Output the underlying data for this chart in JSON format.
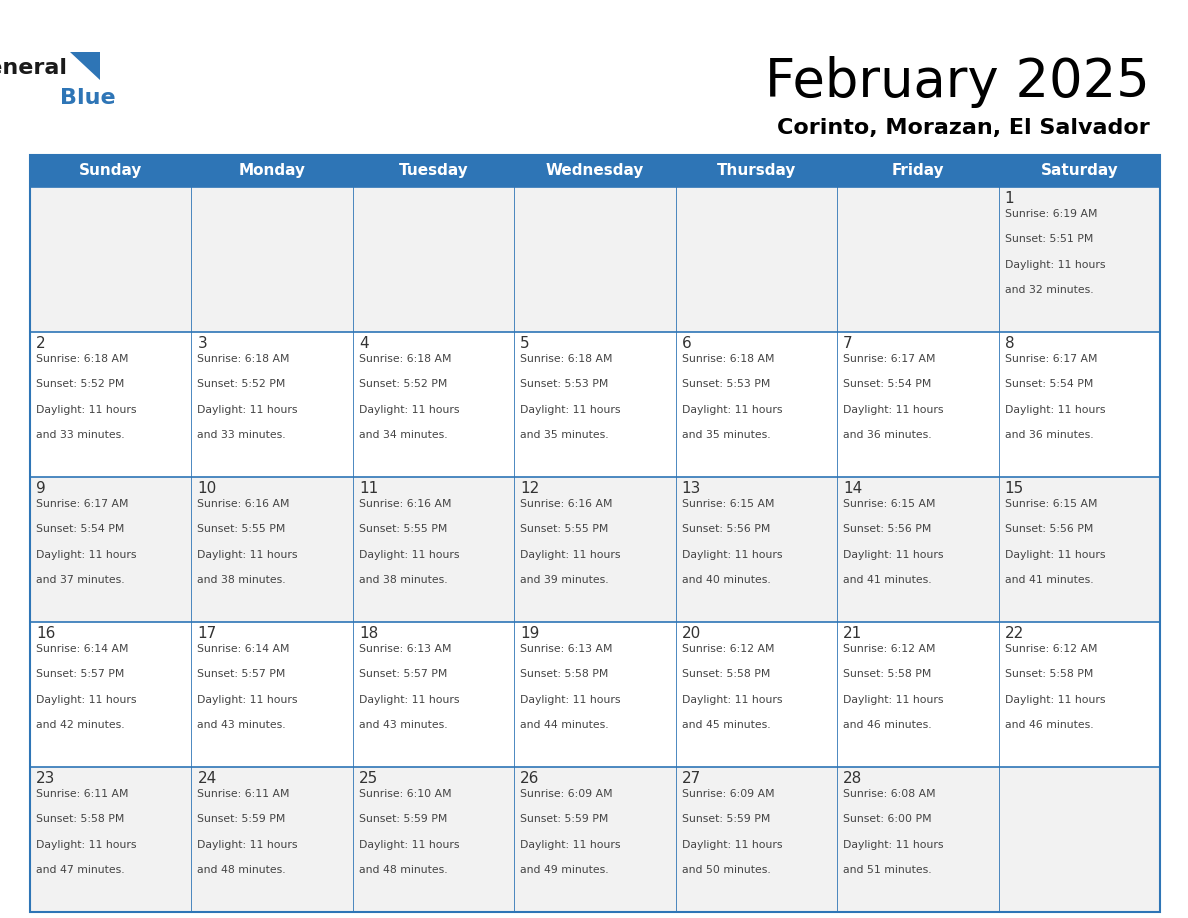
{
  "title": "February 2025",
  "subtitle": "Corinto, Morazan, El Salvador",
  "days_of_week": [
    "Sunday",
    "Monday",
    "Tuesday",
    "Wednesday",
    "Thursday",
    "Friday",
    "Saturday"
  ],
  "header_bg_color": "#2e75b6",
  "header_text_color": "#ffffff",
  "row_bg_even": "#f2f2f2",
  "row_bg_odd": "#ffffff",
  "grid_line_color": "#2e75b6",
  "day_number_color": "#333333",
  "cell_text_color": "#444444",
  "title_color": "#000000",
  "subtitle_color": "#000000",
  "logo_general_color": "#1a1a1a",
  "logo_blue_color": "#2e75b6",
  "logo_triangle_color": "#2e75b6",
  "calendar_data": [
    {
      "day": 1,
      "week": 0,
      "weekday": 6,
      "sunrise": "6:19 AM",
      "sunset": "5:51 PM",
      "daylight_hours": 11,
      "daylight_minutes": 32
    },
    {
      "day": 2,
      "week": 1,
      "weekday": 0,
      "sunrise": "6:18 AM",
      "sunset": "5:52 PM",
      "daylight_hours": 11,
      "daylight_minutes": 33
    },
    {
      "day": 3,
      "week": 1,
      "weekday": 1,
      "sunrise": "6:18 AM",
      "sunset": "5:52 PM",
      "daylight_hours": 11,
      "daylight_minutes": 33
    },
    {
      "day": 4,
      "week": 1,
      "weekday": 2,
      "sunrise": "6:18 AM",
      "sunset": "5:52 PM",
      "daylight_hours": 11,
      "daylight_minutes": 34
    },
    {
      "day": 5,
      "week": 1,
      "weekday": 3,
      "sunrise": "6:18 AM",
      "sunset": "5:53 PM",
      "daylight_hours": 11,
      "daylight_minutes": 35
    },
    {
      "day": 6,
      "week": 1,
      "weekday": 4,
      "sunrise": "6:18 AM",
      "sunset": "5:53 PM",
      "daylight_hours": 11,
      "daylight_minutes": 35
    },
    {
      "day": 7,
      "week": 1,
      "weekday": 5,
      "sunrise": "6:17 AM",
      "sunset": "5:54 PM",
      "daylight_hours": 11,
      "daylight_minutes": 36
    },
    {
      "day": 8,
      "week": 1,
      "weekday": 6,
      "sunrise": "6:17 AM",
      "sunset": "5:54 PM",
      "daylight_hours": 11,
      "daylight_minutes": 36
    },
    {
      "day": 9,
      "week": 2,
      "weekday": 0,
      "sunrise": "6:17 AM",
      "sunset": "5:54 PM",
      "daylight_hours": 11,
      "daylight_minutes": 37
    },
    {
      "day": 10,
      "week": 2,
      "weekday": 1,
      "sunrise": "6:16 AM",
      "sunset": "5:55 PM",
      "daylight_hours": 11,
      "daylight_minutes": 38
    },
    {
      "day": 11,
      "week": 2,
      "weekday": 2,
      "sunrise": "6:16 AM",
      "sunset": "5:55 PM",
      "daylight_hours": 11,
      "daylight_minutes": 38
    },
    {
      "day": 12,
      "week": 2,
      "weekday": 3,
      "sunrise": "6:16 AM",
      "sunset": "5:55 PM",
      "daylight_hours": 11,
      "daylight_minutes": 39
    },
    {
      "day": 13,
      "week": 2,
      "weekday": 4,
      "sunrise": "6:15 AM",
      "sunset": "5:56 PM",
      "daylight_hours": 11,
      "daylight_minutes": 40
    },
    {
      "day": 14,
      "week": 2,
      "weekday": 5,
      "sunrise": "6:15 AM",
      "sunset": "5:56 PM",
      "daylight_hours": 11,
      "daylight_minutes": 41
    },
    {
      "day": 15,
      "week": 2,
      "weekday": 6,
      "sunrise": "6:15 AM",
      "sunset": "5:56 PM",
      "daylight_hours": 11,
      "daylight_minutes": 41
    },
    {
      "day": 16,
      "week": 3,
      "weekday": 0,
      "sunrise": "6:14 AM",
      "sunset": "5:57 PM",
      "daylight_hours": 11,
      "daylight_minutes": 42
    },
    {
      "day": 17,
      "week": 3,
      "weekday": 1,
      "sunrise": "6:14 AM",
      "sunset": "5:57 PM",
      "daylight_hours": 11,
      "daylight_minutes": 43
    },
    {
      "day": 18,
      "week": 3,
      "weekday": 2,
      "sunrise": "6:13 AM",
      "sunset": "5:57 PM",
      "daylight_hours": 11,
      "daylight_minutes": 43
    },
    {
      "day": 19,
      "week": 3,
      "weekday": 3,
      "sunrise": "6:13 AM",
      "sunset": "5:58 PM",
      "daylight_hours": 11,
      "daylight_minutes": 44
    },
    {
      "day": 20,
      "week": 3,
      "weekday": 4,
      "sunrise": "6:12 AM",
      "sunset": "5:58 PM",
      "daylight_hours": 11,
      "daylight_minutes": 45
    },
    {
      "day": 21,
      "week": 3,
      "weekday": 5,
      "sunrise": "6:12 AM",
      "sunset": "5:58 PM",
      "daylight_hours": 11,
      "daylight_minutes": 46
    },
    {
      "day": 22,
      "week": 3,
      "weekday": 6,
      "sunrise": "6:12 AM",
      "sunset": "5:58 PM",
      "daylight_hours": 11,
      "daylight_minutes": 46
    },
    {
      "day": 23,
      "week": 4,
      "weekday": 0,
      "sunrise": "6:11 AM",
      "sunset": "5:58 PM",
      "daylight_hours": 11,
      "daylight_minutes": 47
    },
    {
      "day": 24,
      "week": 4,
      "weekday": 1,
      "sunrise": "6:11 AM",
      "sunset": "5:59 PM",
      "daylight_hours": 11,
      "daylight_minutes": 48
    },
    {
      "day": 25,
      "week": 4,
      "weekday": 2,
      "sunrise": "6:10 AM",
      "sunset": "5:59 PM",
      "daylight_hours": 11,
      "daylight_minutes": 48
    },
    {
      "day": 26,
      "week": 4,
      "weekday": 3,
      "sunrise": "6:09 AM",
      "sunset": "5:59 PM",
      "daylight_hours": 11,
      "daylight_minutes": 49
    },
    {
      "day": 27,
      "week": 4,
      "weekday": 4,
      "sunrise": "6:09 AM",
      "sunset": "5:59 PM",
      "daylight_hours": 11,
      "daylight_minutes": 50
    },
    {
      "day": 28,
      "week": 4,
      "weekday": 5,
      "sunrise": "6:08 AM",
      "sunset": "6:00 PM",
      "daylight_hours": 11,
      "daylight_minutes": 51
    }
  ]
}
